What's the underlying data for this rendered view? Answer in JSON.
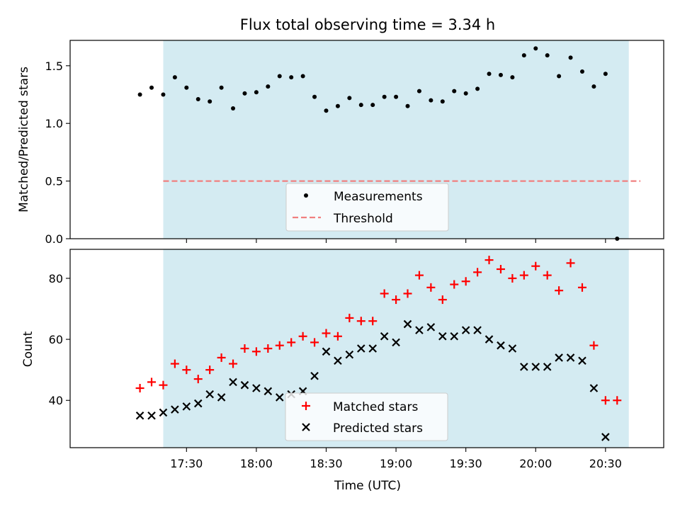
{
  "chart_data": [
    {
      "type": "scatter",
      "title": "Flux total observing time = 3.34 h",
      "xlabel": "",
      "ylabel": "Matched/Predicted stars",
      "ylim": [
        0,
        1.72
      ],
      "yticks": [
        "0.0",
        "0.5",
        "1.0",
        "1.5"
      ],
      "x_start_minutes": 1030,
      "x_step_minutes": 5,
      "shaded_span": [
        "17:20",
        "20:40"
      ],
      "shade_color": "#add8e6",
      "series": [
        {
          "name": "Measurements",
          "marker": "dot",
          "color": "#000000",
          "values": [
            1.25,
            1.31,
            1.25,
            1.4,
            1.31,
            1.21,
            1.19,
            1.31,
            1.13,
            1.26,
            1.27,
            1.32,
            1.41,
            1.4,
            1.41,
            1.23,
            1.11,
            1.15,
            1.22,
            1.16,
            1.16,
            1.23,
            1.23,
            1.15,
            1.28,
            1.2,
            1.19,
            1.28,
            1.26,
            1.3,
            1.43,
            1.42,
            1.4,
            1.59,
            1.65,
            1.59,
            1.41,
            1.57,
            1.45,
            1.32,
            1.43,
            0.0
          ]
        },
        {
          "name": "Threshold",
          "marker": "dashed-line",
          "color": "#f08080",
          "value": 0.5,
          "x_range": [
            "17:20",
            "20:45"
          ]
        }
      ],
      "legend": "lower-center"
    },
    {
      "type": "scatter",
      "title": "",
      "xlabel": "Time (UTC)",
      "ylabel": "Count",
      "ylim": [
        24.5,
        89.5
      ],
      "yticks": [
        "40",
        "60",
        "80"
      ],
      "xticks": [
        "17:30",
        "18:00",
        "18:30",
        "19:00",
        "19:30",
        "20:00",
        "20:30"
      ],
      "x_start_minutes": 1030,
      "x_step_minutes": 5,
      "shaded_span": [
        "17:20",
        "20:40"
      ],
      "shade_color": "#add8e6",
      "series": [
        {
          "name": "Matched stars",
          "marker": "plus",
          "color": "#ff0000",
          "values": [
            44,
            46,
            45,
            52,
            50,
            47,
            50,
            54,
            52,
            57,
            56,
            57,
            58,
            59,
            61,
            59,
            62,
            61,
            67,
            66,
            66,
            75,
            73,
            75,
            81,
            77,
            73,
            78,
            79,
            82,
            86,
            83,
            80,
            81,
            84,
            81,
            76,
            85,
            77,
            58,
            40,
            40
          ]
        },
        {
          "name": "Predicted stars",
          "marker": "x",
          "color": "#000000",
          "values": [
            35,
            35,
            36,
            37,
            38,
            39,
            42,
            41,
            46,
            45,
            44,
            43,
            41,
            42,
            43,
            48,
            56,
            53,
            55,
            57,
            57,
            61,
            59,
            65,
            63,
            64,
            61,
            61,
            63,
            63,
            60,
            58,
            57,
            51,
            51,
            51,
            54,
            54,
            53,
            44,
            28
          ]
        }
      ],
      "legend": "lower-center"
    }
  ]
}
